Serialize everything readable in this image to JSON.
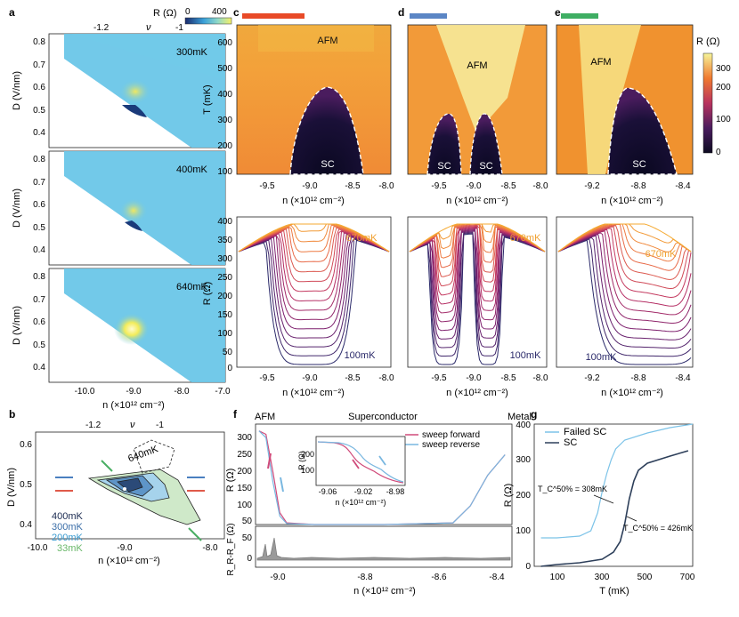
{
  "panel_letters": {
    "a": "a",
    "b": "b",
    "c": "c",
    "d": "d",
    "e": "e",
    "f": "f",
    "g": "g"
  },
  "colorbar_a": {
    "title": "R (Ω)",
    "min_label": "0",
    "max_label": "400"
  },
  "colorbar_ce": {
    "title": "R (Ω)",
    "ticks": [
      "0",
      "100",
      "200",
      "300"
    ]
  },
  "colors": {
    "bar_c": "#e84a27",
    "bar_d": "#5b86c5",
    "bar_e": "#3fae63",
    "failed": "#7cc3e8",
    "sc": "#2d3f5a",
    "sweep_forward": "#d04a7a",
    "sweep_reverse": "#79b7e0"
  },
  "panel_a": {
    "top_nu_ticks": [
      "-1.2",
      "ν",
      "-1"
    ],
    "ylabel": "D (V/nm)",
    "yticks": [
      "0.8",
      "0.7",
      "0.6",
      "0.5",
      "0.4"
    ],
    "xticks": [
      "-10.0",
      "-9.0",
      "-8.0",
      "-7.0"
    ],
    "xlabel": "n (×10¹² cm⁻²)",
    "subpanels": [
      {
        "label": "300mK"
      },
      {
        "label": "400mK"
      },
      {
        "label": "640mK"
      }
    ]
  },
  "panel_b": {
    "top_nu_ticks": [
      "-1.2",
      "ν",
      "-1"
    ],
    "ylabel": "D (V/nm)",
    "yticks": [
      "0.6",
      "0.5",
      "0.4"
    ],
    "xticks": [
      "-10.0",
      "-9.0",
      "-8.0"
    ],
    "xlabel": "n (×10¹² cm⁻²)",
    "contours": [
      {
        "label": "640mK"
      },
      {
        "label": "400mK"
      },
      {
        "label": "300mK"
      },
      {
        "label": "200mK"
      },
      {
        "label": "33mK"
      }
    ]
  },
  "panel_c": {
    "ylabel": "T (mK)",
    "yticks": [
      "600",
      "500",
      "400",
      "300",
      "200",
      "100"
    ],
    "xticks": [
      "-9.5",
      "-9.0",
      "-8.5",
      "-8.0"
    ],
    "xlabel": "n (×10¹² cm⁻²)",
    "labels": {
      "afm": "AFM",
      "sc": "SC"
    },
    "bottom": {
      "ylabel": "R (Ω)",
      "yticks": [
        "400",
        "350",
        "300",
        "250",
        "200",
        "150",
        "100",
        "50",
        "0"
      ],
      "xticks": [
        "-9.5",
        "-9.0",
        "-8.5",
        "-8.0"
      ],
      "hot": "670mK",
      "cold": "100mK"
    }
  },
  "panel_d": {
    "xticks": [
      "-9.5",
      "-9.0",
      "-8.5",
      "-8.0"
    ],
    "xlabel": "n (×10¹² cm⁻²)",
    "labels": {
      "afm": "AFM",
      "sc1": "SC",
      "sc2": "SC"
    },
    "bottom": {
      "xticks": [
        "-9.5",
        "-9.0",
        "-8.5",
        "-8.0"
      ],
      "hot": "670mK",
      "cold": "100mK"
    }
  },
  "panel_e": {
    "xticks": [
      "-9.2",
      "-8.8",
      "-8.4"
    ],
    "xlabel": "n (×10¹² cm⁻²)",
    "labels": {
      "afm": "AFM",
      "sc": "SC"
    },
    "bottom": {
      "xticks": [
        "-9.2",
        "-8.8",
        "-8.4"
      ],
      "hot": "670mK",
      "cold": "100mK"
    }
  },
  "panel_f": {
    "top_labels": {
      "afm": "AFM",
      "sc": "Superconductor",
      "metal": "Metal"
    },
    "ylabel": "R (Ω)",
    "yticks": [
      "300",
      "250",
      "200",
      "150",
      "100",
      "50"
    ],
    "legend": [
      {
        "label": "sweep forward"
      },
      {
        "label": "sweep reverse"
      }
    ],
    "inset": {
      "ylabel": "R (Ω)",
      "yticks": [
        "200",
        "100"
      ],
      "xticks": [
        "-9.06",
        "-9.02",
        "-8.98"
      ],
      "xlabel": "n (×10¹² cm⁻²)"
    },
    "lower": {
      "ylabel": "R_R-R_F (Ω)",
      "yticks": [
        "50",
        "0"
      ]
    },
    "xticks": [
      "-9.0",
      "-8.8",
      "-8.6",
      "-8.4"
    ],
    "xlabel": "n (×10¹² cm⁻²)"
  },
  "panel_g": {
    "ylabel": "R (Ω)",
    "yticks": [
      "400",
      "300",
      "200",
      "100",
      "0"
    ],
    "xticks": [
      "100",
      "300",
      "500",
      "700"
    ],
    "xlabel": "T (mK)",
    "legend": [
      {
        "label": "Failed SC"
      },
      {
        "label": "SC"
      }
    ],
    "annot_failed": "T_C^50% = 308mK",
    "annot_sc": "T_C^50% = 426mK"
  },
  "chart_data": [
    {
      "type": "line",
      "title": "",
      "xlabel": "T (mK)",
      "ylabel": "R (Ω)",
      "xlim": [
        0,
        700
      ],
      "ylim": [
        0,
        400
      ],
      "series": [
        {
          "name": "Failed SC",
          "x": [
            30,
            100,
            200,
            250,
            280,
            300,
            320,
            340,
            360,
            400,
            500,
            600,
            700
          ],
          "y": [
            80,
            80,
            85,
            100,
            150,
            210,
            260,
            300,
            330,
            355,
            375,
            390,
            400
          ]
        },
        {
          "name": "SC",
          "x": [
            30,
            100,
            200,
            300,
            350,
            380,
            400,
            420,
            440,
            460,
            500,
            600,
            680
          ],
          "y": [
            0,
            5,
            10,
            20,
            40,
            70,
            120,
            190,
            240,
            270,
            290,
            310,
            325
          ]
        }
      ]
    },
    {
      "type": "line",
      "title": "",
      "xlabel": "n (×10¹² cm⁻²)",
      "ylabel": "R (Ω)",
      "ylim": [
        0,
        320
      ],
      "series": [
        {
          "name": "sweep forward",
          "x": [
            -9.06,
            -9.04,
            -9.02,
            -9.0,
            -8.98,
            -8.9,
            -8.7,
            -8.5,
            -8.45,
            -8.4,
            -8.35
          ],
          "y": [
            300,
            290,
            180,
            60,
            30,
            25,
            25,
            30,
            80,
            170,
            230
          ]
        },
        {
          "name": "sweep reverse",
          "x": [
            -9.06,
            -9.04,
            -9.02,
            -9.0,
            -8.98,
            -8.9,
            -8.7,
            -8.5,
            -8.45,
            -8.4,
            -8.35
          ],
          "y": [
            300,
            280,
            150,
            50,
            28,
            25,
            25,
            30,
            80,
            170,
            230
          ]
        }
      ]
    }
  ]
}
